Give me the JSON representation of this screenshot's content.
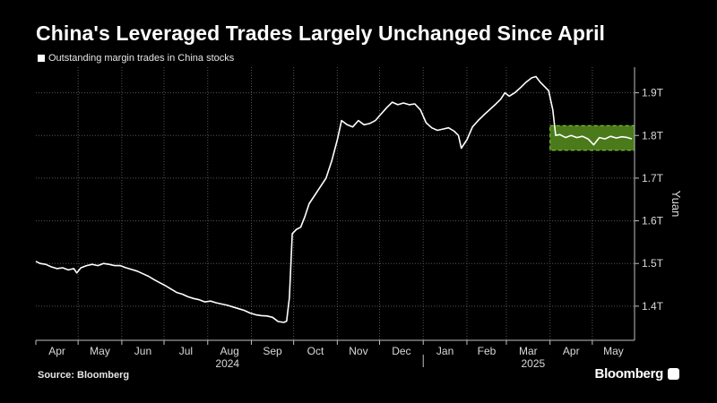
{
  "header": {
    "title": "China's Leveraged Trades Largely Unchanged Since April"
  },
  "legend": {
    "label": "Outstanding margin trades in China stocks"
  },
  "footer": {
    "source": "Source: Bloomberg",
    "brand": "Bloomberg"
  },
  "colors": {
    "background": "#000000",
    "line": "#ffffff",
    "grid": "#555555",
    "highlight_fill": "#4a7a1a",
    "highlight_border": "#8bd13a"
  },
  "chart_data": {
    "type": "line",
    "title": "China's Leveraged Trades Largely Unchanged Since April",
    "ylabel": "Yuan",
    "ylim": [
      1.32,
      1.96
    ],
    "y_ticks": [
      1.4,
      1.5,
      1.6,
      1.7,
      1.8,
      1.9
    ],
    "y_tick_labels": [
      "1.4T",
      "1.5T",
      "1.6T",
      "1.7T",
      "1.8T",
      "1.9T"
    ],
    "y_axis_position": "right",
    "grid": true,
    "x_range": [
      "2024-04-01",
      "2025-05-31"
    ],
    "x_months": [
      {
        "label": "Apr",
        "date": "2024-04-01"
      },
      {
        "label": "May",
        "date": "2024-05-01"
      },
      {
        "label": "Jun",
        "date": "2024-06-01"
      },
      {
        "label": "Jul",
        "date": "2024-07-01"
      },
      {
        "label": "Aug",
        "date": "2024-08-01"
      },
      {
        "label": "Sep",
        "date": "2024-09-01"
      },
      {
        "label": "Oct",
        "date": "2024-10-01"
      },
      {
        "label": "Nov",
        "date": "2024-11-01"
      },
      {
        "label": "Dec",
        "date": "2024-12-01"
      },
      {
        "label": "Jan",
        "date": "2025-01-01"
      },
      {
        "label": "Feb",
        "date": "2025-02-01"
      },
      {
        "label": "Mar",
        "date": "2025-03-01"
      },
      {
        "label": "Apr",
        "date": "2025-04-01"
      },
      {
        "label": "May",
        "date": "2025-05-01"
      }
    ],
    "year_labels": [
      {
        "label": "2024",
        "date": "2024-08-15"
      },
      {
        "label": "2025",
        "date": "2025-03-20"
      }
    ],
    "year_divider_date": "2025-01-01",
    "highlight": {
      "x_start": "2025-04-01",
      "x_end": "2025-05-31",
      "y_start": 1.765,
      "y_end": 1.823
    },
    "series": [
      {
        "points": [
          [
            "2024-04-01",
            1.505
          ],
          [
            "2024-04-04",
            1.5
          ],
          [
            "2024-04-08",
            1.498
          ],
          [
            "2024-04-12",
            1.492
          ],
          [
            "2024-04-16",
            1.488
          ],
          [
            "2024-04-20",
            1.49
          ],
          [
            "2024-04-24",
            1.485
          ],
          [
            "2024-04-28",
            1.488
          ],
          [
            "2024-04-30",
            1.478
          ],
          [
            "2024-05-03",
            1.49
          ],
          [
            "2024-05-07",
            1.495
          ],
          [
            "2024-05-11",
            1.498
          ],
          [
            "2024-05-15",
            1.495
          ],
          [
            "2024-05-19",
            1.5
          ],
          [
            "2024-05-23",
            1.498
          ],
          [
            "2024-05-27",
            1.495
          ],
          [
            "2024-05-31",
            1.495
          ],
          [
            "2024-06-04",
            1.49
          ],
          [
            "2024-06-08",
            1.486
          ],
          [
            "2024-06-12",
            1.482
          ],
          [
            "2024-06-16",
            1.476
          ],
          [
            "2024-06-20",
            1.47
          ],
          [
            "2024-06-24",
            1.462
          ],
          [
            "2024-06-28",
            1.455
          ],
          [
            "2024-07-02",
            1.448
          ],
          [
            "2024-07-06",
            1.44
          ],
          [
            "2024-07-10",
            1.432
          ],
          [
            "2024-07-14",
            1.428
          ],
          [
            "2024-07-18",
            1.422
          ],
          [
            "2024-07-22",
            1.418
          ],
          [
            "2024-07-26",
            1.415
          ],
          [
            "2024-07-30",
            1.41
          ],
          [
            "2024-08-03",
            1.412
          ],
          [
            "2024-08-07",
            1.408
          ],
          [
            "2024-08-11",
            1.405
          ],
          [
            "2024-08-15",
            1.402
          ],
          [
            "2024-08-19",
            1.398
          ],
          [
            "2024-08-23",
            1.394
          ],
          [
            "2024-08-27",
            1.39
          ],
          [
            "2024-08-31",
            1.384
          ],
          [
            "2024-09-04",
            1.38
          ],
          [
            "2024-09-08",
            1.378
          ],
          [
            "2024-09-12",
            1.377
          ],
          [
            "2024-09-16",
            1.374
          ],
          [
            "2024-09-20",
            1.364
          ],
          [
            "2024-09-24",
            1.362
          ],
          [
            "2024-09-26",
            1.365
          ],
          [
            "2024-09-28",
            1.42
          ],
          [
            "2024-09-30",
            1.57
          ],
          [
            "2024-10-03",
            1.58
          ],
          [
            "2024-10-06",
            1.585
          ],
          [
            "2024-10-09",
            1.61
          ],
          [
            "2024-10-12",
            1.64
          ],
          [
            "2024-10-16",
            1.66
          ],
          [
            "2024-10-20",
            1.68
          ],
          [
            "2024-10-24",
            1.7
          ],
          [
            "2024-10-28",
            1.74
          ],
          [
            "2024-11-01",
            1.79
          ],
          [
            "2024-11-04",
            1.835
          ],
          [
            "2024-11-08",
            1.825
          ],
          [
            "2024-11-12",
            1.82
          ],
          [
            "2024-11-16",
            1.835
          ],
          [
            "2024-11-20",
            1.825
          ],
          [
            "2024-11-24",
            1.828
          ],
          [
            "2024-11-28",
            1.835
          ],
          [
            "2024-12-02",
            1.85
          ],
          [
            "2024-12-06",
            1.865
          ],
          [
            "2024-12-10",
            1.878
          ],
          [
            "2024-12-14",
            1.872
          ],
          [
            "2024-12-18",
            1.876
          ],
          [
            "2024-12-22",
            1.872
          ],
          [
            "2024-12-26",
            1.874
          ],
          [
            "2024-12-30",
            1.86
          ],
          [
            "2025-01-03",
            1.83
          ],
          [
            "2025-01-07",
            1.818
          ],
          [
            "2025-01-11",
            1.812
          ],
          [
            "2025-01-15",
            1.815
          ],
          [
            "2025-01-19",
            1.818
          ],
          [
            "2025-01-23",
            1.81
          ],
          [
            "2025-01-26",
            1.8
          ],
          [
            "2025-01-28",
            1.77
          ],
          [
            "2025-02-01",
            1.79
          ],
          [
            "2025-02-05",
            1.82
          ],
          [
            "2025-02-09",
            1.835
          ],
          [
            "2025-02-13",
            1.848
          ],
          [
            "2025-02-17",
            1.86
          ],
          [
            "2025-02-21",
            1.872
          ],
          [
            "2025-02-25",
            1.885
          ],
          [
            "2025-02-28",
            1.9
          ],
          [
            "2025-03-03",
            1.892
          ],
          [
            "2025-03-07",
            1.9
          ],
          [
            "2025-03-11",
            1.912
          ],
          [
            "2025-03-15",
            1.925
          ],
          [
            "2025-03-19",
            1.935
          ],
          [
            "2025-03-22",
            1.938
          ],
          [
            "2025-03-25",
            1.925
          ],
          [
            "2025-03-28",
            1.915
          ],
          [
            "2025-03-31",
            1.905
          ],
          [
            "2025-04-03",
            1.86
          ],
          [
            "2025-04-05",
            1.8
          ],
          [
            "2025-04-08",
            1.802
          ],
          [
            "2025-04-12",
            1.795
          ],
          [
            "2025-04-16",
            1.8
          ],
          [
            "2025-04-20",
            1.795
          ],
          [
            "2025-04-24",
            1.798
          ],
          [
            "2025-04-28",
            1.792
          ],
          [
            "2025-05-02",
            1.778
          ],
          [
            "2025-05-06",
            1.795
          ],
          [
            "2025-05-10",
            1.792
          ],
          [
            "2025-05-14",
            1.798
          ],
          [
            "2025-05-18",
            1.794
          ],
          [
            "2025-05-22",
            1.797
          ],
          [
            "2025-05-26",
            1.795
          ],
          [
            "2025-05-29",
            1.792
          ]
        ]
      }
    ]
  }
}
